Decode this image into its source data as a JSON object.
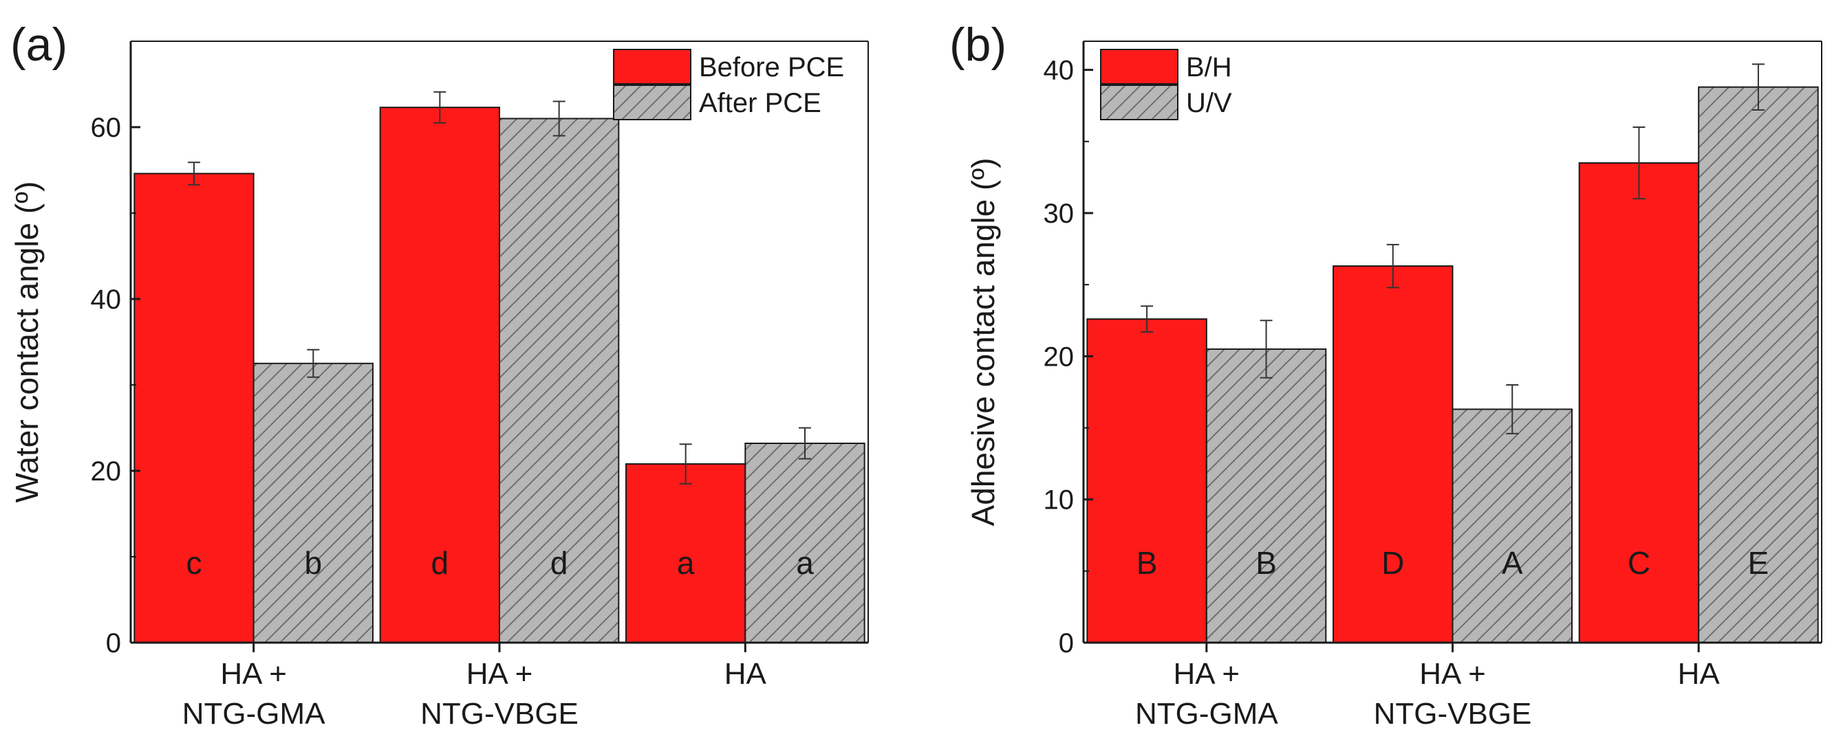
{
  "colors": {
    "red": "#ff1a1a",
    "gray": "#b7b7b7",
    "hatch": "#6e6e6e",
    "axis": "#1a1a1a"
  },
  "chart_data": [
    {
      "panel": "(a)",
      "type": "bar",
      "ylabel": "Water contact angle (º)",
      "ylim": [
        0,
        70
      ],
      "yticks": [
        0,
        20,
        40,
        60
      ],
      "categories": [
        "HA +\nNTG-GMA",
        "HA +\nNTG-VBGE",
        "HA"
      ],
      "legend_position": "top-right",
      "series": [
        {
          "name": "Before PCE",
          "values": [
            54.6,
            62.3,
            20.8
          ],
          "errors": [
            1.3,
            1.8,
            2.3
          ],
          "letters": [
            "c",
            "d",
            "a"
          ],
          "style": "solid"
        },
        {
          "name": "After PCE",
          "values": [
            32.5,
            61.0,
            23.2
          ],
          "errors": [
            1.6,
            2.0,
            1.8
          ],
          "letters": [
            "b",
            "d",
            "a"
          ],
          "style": "hatched"
        }
      ]
    },
    {
      "panel": "(b)",
      "type": "bar",
      "ylabel": "Adhesive contact angle (º)",
      "ylim": [
        0,
        42
      ],
      "yticks": [
        0,
        10,
        20,
        30,
        40
      ],
      "categories": [
        "HA +\nNTG-GMA",
        "HA +\nNTG-VBGE",
        "HA"
      ],
      "legend_position": "top-left",
      "series": [
        {
          "name": "B/H",
          "values": [
            22.6,
            26.3,
            33.5
          ],
          "errors": [
            0.9,
            1.5,
            2.5
          ],
          "letters": [
            "B",
            "D",
            "C"
          ],
          "style": "solid"
        },
        {
          "name": "U/V",
          "values": [
            20.5,
            16.3,
            38.8
          ],
          "errors": [
            2.0,
            1.7,
            1.6
          ],
          "letters": [
            "B",
            "A",
            "E"
          ],
          "style": "hatched"
        }
      ]
    }
  ]
}
